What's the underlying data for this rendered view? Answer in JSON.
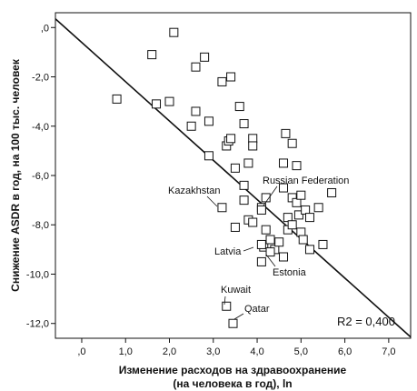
{
  "chart_data": {
    "type": "scatter",
    "xlabel": "Изменение расходов на здравоохранение",
    "xlabel_line2": "(на человека в год), ln",
    "ylabel": "Снижение ASDR в год, на 100 тыс. человек",
    "xlim": [
      -0.6,
      7.5
    ],
    "ylim": [
      -12.6,
      0.6
    ],
    "x_ticks": [
      0,
      1,
      2,
      3,
      4,
      5,
      6,
      7
    ],
    "x_tick_labels": [
      ",0",
      "1,0",
      "2,0",
      "3,0",
      "4,0",
      "5,0",
      "6,0",
      "7,0"
    ],
    "y_ticks": [
      0,
      -2,
      -4,
      -6,
      -8,
      -10,
      -12
    ],
    "y_tick_labels": [
      ",0",
      "-2,0",
      "-4,0",
      "-6,0",
      "-8,0",
      "-10,0",
      "-12,0"
    ],
    "grid": false,
    "marker": "open-square",
    "r2_label": "R2 = 0,400",
    "regression_line": {
      "x": [
        -0.6,
        7.5
      ],
      "y": [
        0.35,
        -12.55
      ]
    },
    "points": [
      {
        "x": 0.8,
        "y": -2.9
      },
      {
        "x": 1.6,
        "y": -1.1
      },
      {
        "x": 1.7,
        "y": -3.1
      },
      {
        "x": 2.0,
        "y": -3.0
      },
      {
        "x": 2.1,
        "y": -0.2
      },
      {
        "x": 2.5,
        "y": -4.0
      },
      {
        "x": 2.6,
        "y": -1.6
      },
      {
        "x": 2.6,
        "y": -3.4
      },
      {
        "x": 2.8,
        "y": -1.2
      },
      {
        "x": 2.9,
        "y": -3.8
      },
      {
        "x": 2.9,
        "y": -5.2
      },
      {
        "x": 3.2,
        "y": -2.2
      },
      {
        "x": 3.3,
        "y": -4.8
      },
      {
        "x": 3.35,
        "y": -4.6
      },
      {
        "x": 3.4,
        "y": -4.5
      },
      {
        "x": 3.4,
        "y": -2.0
      },
      {
        "x": 3.5,
        "y": -5.7
      },
      {
        "x": 3.6,
        "y": -3.2
      },
      {
        "x": 3.7,
        "y": -6.4
      },
      {
        "x": 3.7,
        "y": -7.0
      },
      {
        "x": 3.7,
        "y": -3.9
      },
      {
        "x": 3.8,
        "y": -5.5
      },
      {
        "x": 3.9,
        "y": -4.5
      },
      {
        "x": 3.9,
        "y": -4.8
      },
      {
        "x": 3.5,
        "y": -8.1
      },
      {
        "x": 3.8,
        "y": -7.8
      },
      {
        "x": 3.9,
        "y": -7.9
      },
      {
        "x": 4.1,
        "y": -7.3
      },
      {
        "x": 4.2,
        "y": -6.9
      },
      {
        "x": 4.2,
        "y": -8.2
      },
      {
        "x": 4.15,
        "y": -8.9
      },
      {
        "x": 4.3,
        "y": -8.6
      },
      {
        "x": 4.4,
        "y": -9.0
      },
      {
        "x": 4.5,
        "y": -8.7
      },
      {
        "x": 4.6,
        "y": -5.5
      },
      {
        "x": 4.6,
        "y": -6.5
      },
      {
        "x": 4.65,
        "y": -4.3
      },
      {
        "x": 4.7,
        "y": -7.7
      },
      {
        "x": 4.7,
        "y": -8.2
      },
      {
        "x": 4.8,
        "y": -4.7
      },
      {
        "x": 4.8,
        "y": -6.9
      },
      {
        "x": 4.8,
        "y": -8.0
      },
      {
        "x": 4.9,
        "y": -5.6
      },
      {
        "x": 4.9,
        "y": -7.1
      },
      {
        "x": 4.95,
        "y": -7.6
      },
      {
        "x": 5.0,
        "y": -6.8
      },
      {
        "x": 5.0,
        "y": -8.3
      },
      {
        "x": 5.05,
        "y": -8.6
      },
      {
        "x": 5.1,
        "y": -7.4
      },
      {
        "x": 5.2,
        "y": -7.7
      },
      {
        "x": 5.2,
        "y": -9.0
      },
      {
        "x": 5.4,
        "y": -7.3
      },
      {
        "x": 5.5,
        "y": -8.8
      },
      {
        "x": 5.7,
        "y": -6.7
      },
      {
        "x": 4.6,
        "y": -9.3
      },
      {
        "x": 4.1,
        "y": -9.5
      }
    ],
    "labeled_points": [
      {
        "label": "Kazakhstan",
        "x": 3.2,
        "y": -7.3
      },
      {
        "label": "Russian Federation",
        "x": 4.1,
        "y": -7.4
      },
      {
        "label": "Latvia",
        "x": 4.1,
        "y": -8.8
      },
      {
        "label": "Estonia",
        "x": 4.3,
        "y": -9.1
      },
      {
        "label": "Kuwait",
        "x": 3.3,
        "y": -11.3
      },
      {
        "label": "Qatar",
        "x": 3.45,
        "y": -12.0
      }
    ]
  }
}
